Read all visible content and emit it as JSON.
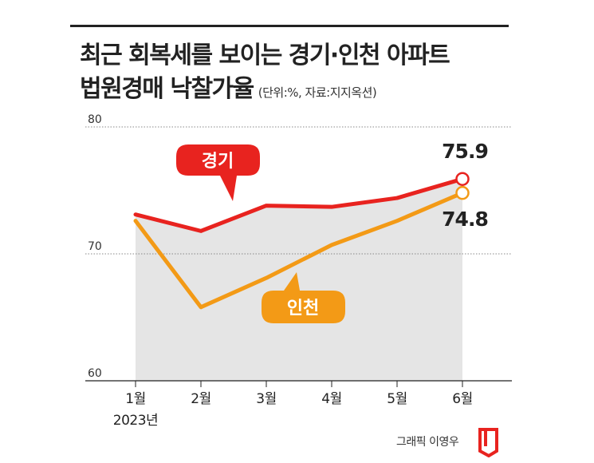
{
  "title": {
    "line1": "최근 회복세를 보이는 경기·인천 아파트",
    "line2": "법원경매 낙찰가율",
    "subtitle": "(단위:%, 자료:지지옥션)"
  },
  "credit": "그래픽 이영우",
  "colors": {
    "gyeonggi": "#e8231f",
    "incheon": "#f39a16",
    "shade": "#e5e5e5",
    "grid": "#888888"
  },
  "chart_data": {
    "type": "line",
    "categories": [
      "1월",
      "2월",
      "3월",
      "4월",
      "5월",
      "6월"
    ],
    "year_label": "2023년",
    "ylim": [
      60,
      80
    ],
    "yticks": [
      80,
      70,
      60
    ],
    "series": [
      {
        "name": "경기",
        "values": [
          73.1,
          71.8,
          73.8,
          73.7,
          74.4,
          75.9
        ]
      },
      {
        "name": "인천",
        "values": [
          72.6,
          65.8,
          68.1,
          70.7,
          72.6,
          74.8
        ]
      }
    ],
    "annotations": {
      "gyeonggi_last": "75.9",
      "incheon_last": "74.8"
    }
  }
}
